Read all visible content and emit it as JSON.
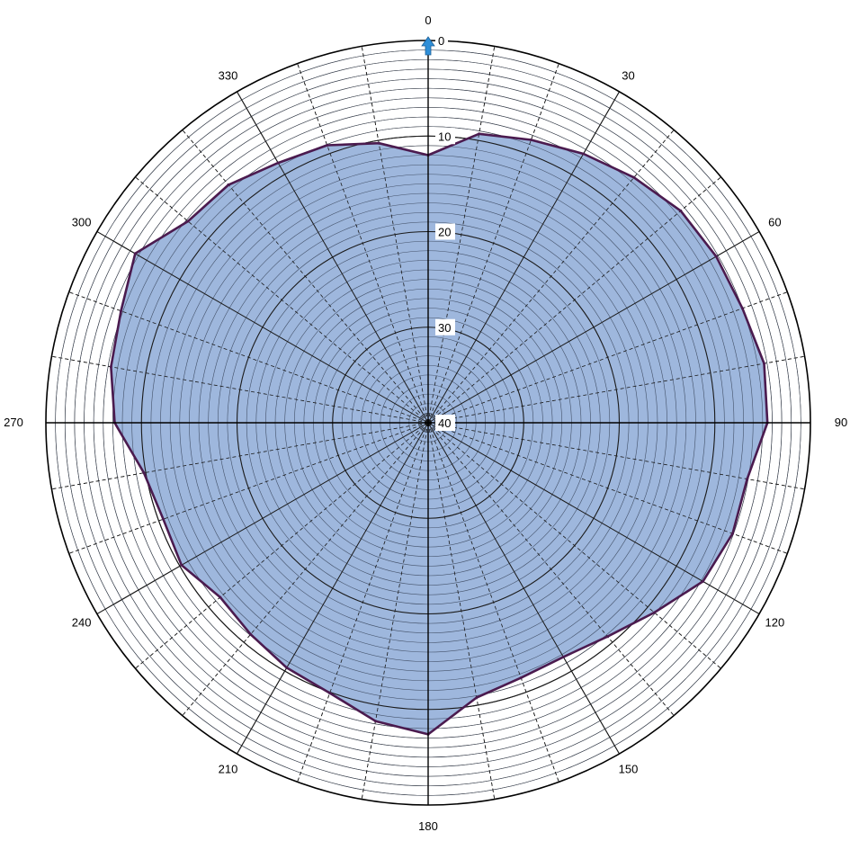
{
  "chart_data": {
    "type": "area",
    "subtype": "polar",
    "angle_labels": [
      "0",
      "30",
      "60",
      "90",
      "120",
      "150",
      "180",
      "210",
      "240",
      "270",
      "300",
      "330"
    ],
    "radial_labels": [
      "0",
      "10",
      "20",
      "30",
      "40"
    ],
    "radial_axis": {
      "range": [
        0,
        40
      ],
      "reversed": true,
      "minor_step": 1,
      "major_step": 10
    },
    "angle_axis": {
      "range": [
        0,
        360
      ],
      "major_step": 30,
      "minor_step": 10,
      "direction": "clockwise",
      "zero_at": "top"
    },
    "grid": true,
    "series": [
      {
        "angles": [
          0,
          10,
          20,
          30,
          40,
          50,
          60,
          70,
          80,
          90,
          100,
          110,
          120,
          130,
          140,
          150,
          160,
          170,
          180,
          190,
          200,
          210,
          220,
          230,
          240,
          250,
          260,
          270,
          280,
          290,
          300,
          310,
          320,
          330,
          340,
          350
        ],
        "values": [
          12.0,
          9.3,
          8.5,
          7.5,
          6.5,
          5.5,
          5.2,
          5.0,
          4.3,
          4.5,
          6.1,
          6.1,
          6.8,
          9.1,
          10.8,
          11.7,
          11.6,
          10.8,
          7.4,
          8.3,
          9.9,
          10.4,
          11.1,
          11.6,
          10.2,
          10.5,
          9.8,
          7.2,
          6.3,
          5.8,
          4.6,
          7.2,
          7.5,
          8.6,
          9.1,
          10.3
        ],
        "fill": "#9cb6dc",
        "stroke": "#4b1b4f"
      }
    ],
    "marker_color": "#2f8fd8"
  }
}
